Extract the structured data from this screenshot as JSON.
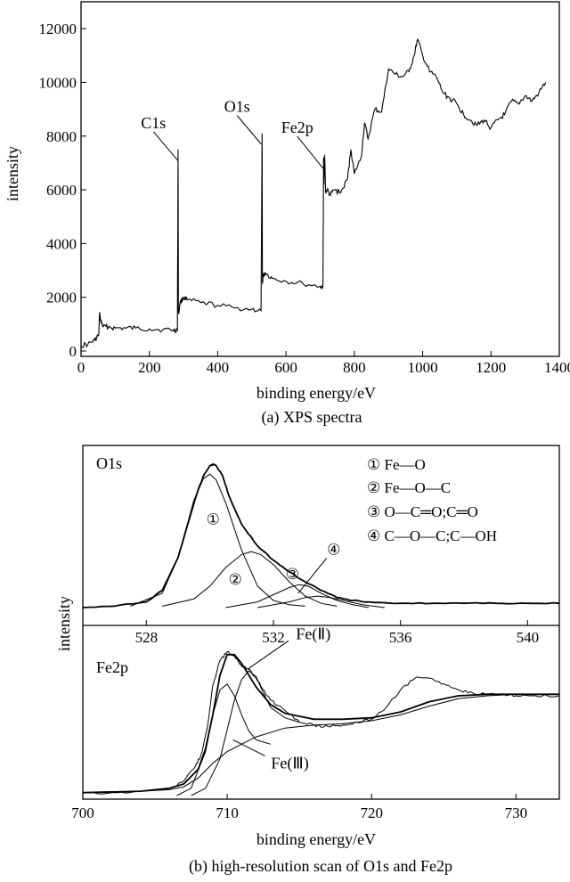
{
  "chart_data": [
    {
      "id": "survey",
      "type": "line",
      "caption": "(a)  XPS spectra",
      "xlabel": "binding energy/eV",
      "ylabel": "intensity",
      "xlim": [
        0,
        1400
      ],
      "ylim": [
        -200,
        13000
      ],
      "xticks": [
        0,
        200,
        400,
        600,
        800,
        1000,
        1200,
        1400
      ],
      "yticks": [
        0,
        2000,
        4000,
        6000,
        8000,
        10000,
        12000
      ],
      "series": [
        {
          "x": [
            0,
            20,
            40,
            52,
            54,
            58,
            65,
            80,
            100,
            130,
            160,
            200,
            240,
            270,
            282,
            284,
            285,
            286,
            290,
            300,
            310,
            350,
            400,
            450,
            500,
            527,
            530,
            531,
            533,
            540,
            560,
            600,
            650,
            700,
            708,
            710,
            711,
            713,
            716,
            720,
            730,
            740,
            760,
            780,
            790,
            800,
            820,
            830,
            840,
            860,
            880,
            900,
            920,
            940,
            960,
            975,
            985,
            1000,
            1020,
            1040,
            1060,
            1080,
            1100,
            1120,
            1140,
            1160,
            1180,
            1200,
            1220,
            1240,
            1260,
            1280,
            1300,
            1320,
            1340,
            1360
          ],
          "values": [
            200,
            250,
            400,
            600,
            1400,
            1100,
            900,
            900,
            850,
            850,
            850,
            820,
            800,
            780,
            780,
            7500,
            1600,
            1400,
            1800,
            2000,
            1900,
            1800,
            1700,
            1600,
            1550,
            1500,
            8100,
            2500,
            2800,
            2900,
            2700,
            2600,
            2500,
            2400,
            2400,
            7200,
            6200,
            7300,
            5900,
            6000,
            5800,
            6000,
            5900,
            6400,
            7500,
            6600,
            7200,
            8500,
            7900,
            9000,
            8900,
            10500,
            10300,
            10200,
            10400,
            11000,
            11600,
            11000,
            10400,
            10200,
            9600,
            9400,
            9200,
            8800,
            8600,
            8400,
            8600,
            8300,
            8600,
            8800,
            9300,
            9200,
            9500,
            9300,
            9600,
            10000
          ]
        }
      ],
      "annotations": [
        {
          "label": "C1s",
          "x": 285,
          "y": 7500
        },
        {
          "label": "O1s",
          "x": 530,
          "y": 8100
        },
        {
          "label": "Fe2p",
          "x": 711,
          "y": 7200
        }
      ]
    },
    {
      "id": "o1s",
      "type": "line",
      "panel_label": "O1s",
      "xlim": [
        526,
        541
      ],
      "ylim": [
        0,
        1.05
      ],
      "xticks": [
        528,
        532,
        536,
        540
      ],
      "series": [
        {
          "x": [
            526.0,
            527.0,
            528.0,
            528.5,
            529.0,
            529.3,
            529.6,
            529.8,
            530.0,
            530.1,
            530.2,
            530.4,
            530.6,
            531.0,
            531.5,
            532.0,
            532.5,
            533.0,
            533.5,
            534.0,
            534.5,
            535.0,
            536.0,
            537.0,
            538.0,
            539.0,
            540.0,
            541.0
          ],
          "values": [
            0.0,
            0.01,
            0.04,
            0.12,
            0.35,
            0.58,
            0.8,
            0.92,
            0.99,
            1.0,
            0.99,
            0.92,
            0.78,
            0.58,
            0.43,
            0.33,
            0.25,
            0.18,
            0.12,
            0.07,
            0.05,
            0.04,
            0.03,
            0.03,
            0.03,
            0.03,
            0.03,
            0.03
          ]
        },
        {
          "name": "① Fe—O",
          "x": [
            527.5,
            528.5,
            529.0,
            529.5,
            529.8,
            530.0,
            530.2,
            530.5,
            531.0,
            531.5,
            532.0,
            532.5,
            533.0
          ],
          "values": [
            0.01,
            0.1,
            0.35,
            0.75,
            0.9,
            0.93,
            0.89,
            0.73,
            0.4,
            0.15,
            0.05,
            0.02,
            0.01
          ]
        },
        {
          "name": "② Fe—O—C",
          "x": [
            528.5,
            529.5,
            530.0,
            530.5,
            531.0,
            531.3,
            531.6,
            532.0,
            532.5,
            533.0,
            533.5,
            534.0
          ],
          "values": [
            0.01,
            0.06,
            0.15,
            0.28,
            0.37,
            0.39,
            0.37,
            0.3,
            0.18,
            0.08,
            0.03,
            0.01
          ]
        },
        {
          "name": "③ O—C═O;C═O",
          "x": [
            530.5,
            531.5,
            532.0,
            532.5,
            532.8,
            533.1,
            533.5,
            534.0,
            534.5,
            535.0
          ],
          "values": [
            0.0,
            0.04,
            0.09,
            0.14,
            0.16,
            0.15,
            0.1,
            0.05,
            0.02,
            0.0
          ]
        },
        {
          "name": "④ C—O—C;C—OH",
          "x": [
            531.5,
            532.5,
            533.0,
            533.4,
            533.8,
            534.2,
            534.8,
            535.5
          ],
          "values": [
            0.0,
            0.04,
            0.07,
            0.08,
            0.07,
            0.05,
            0.02,
            0.0
          ]
        }
      ],
      "markers": [
        {
          "label": "①",
          "x": 530.1,
          "y": 0.58
        },
        {
          "label": "②",
          "x": 530.8,
          "y": 0.16
        },
        {
          "label": "③",
          "x": 532.6,
          "y": 0.2
        },
        {
          "label": "④",
          "x": 533.9,
          "y": 0.37
        }
      ]
    },
    {
      "id": "fe2p",
      "type": "line",
      "panel_label": "Fe2p",
      "caption": "(b) high-resolution scan of O1s and Fe2p",
      "xlabel": "binding energy/eV",
      "ylabel": "intensity",
      "xlim": [
        700,
        733
      ],
      "ylim": [
        0,
        1.05
      ],
      "xticks": [
        700,
        710,
        720,
        730
      ],
      "series": [
        {
          "x": [
            700,
            702,
            704,
            706,
            707,
            707.8,
            708.2,
            708.6,
            709.0,
            709.5,
            710.0,
            710.5,
            711.0,
            711.5,
            712.0,
            712.5,
            713.0,
            714.0,
            715.0,
            716.0,
            717.0,
            718.0,
            719.0,
            720.0,
            721.0,
            722.0,
            723.0,
            724.0,
            725.0,
            726.0,
            727.0,
            728.0,
            729.0,
            730.0,
            731.0,
            733.0
          ],
          "values": [
            0.02,
            0.02,
            0.03,
            0.05,
            0.1,
            0.2,
            0.28,
            0.45,
            0.75,
            0.92,
            0.98,
            0.95,
            0.88,
            0.86,
            0.8,
            0.72,
            0.65,
            0.58,
            0.5,
            0.48,
            0.47,
            0.48,
            0.5,
            0.52,
            0.6,
            0.72,
            0.8,
            0.8,
            0.76,
            0.72,
            0.7,
            0.69,
            0.69,
            0.68,
            0.68,
            0.68
          ]
        },
        {
          "x": [
            700,
            704,
            706,
            707,
            708,
            708.5,
            709,
            709.5,
            710,
            710.5,
            711,
            711.5,
            712,
            713,
            714,
            716,
            718,
            720,
            722,
            724,
            726,
            728,
            730,
            733
          ],
          "values": [
            0.02,
            0.03,
            0.05,
            0.08,
            0.18,
            0.32,
            0.55,
            0.82,
            0.96,
            0.96,
            0.9,
            0.82,
            0.74,
            0.62,
            0.56,
            0.52,
            0.52,
            0.53,
            0.57,
            0.64,
            0.68,
            0.69,
            0.69,
            0.69
          ]
        },
        {
          "x": [
            700,
            704,
            706,
            707,
            708,
            709,
            710,
            712,
            714,
            716,
            718,
            720,
            722,
            724,
            726,
            728,
            730,
            733
          ],
          "values": [
            0.02,
            0.03,
            0.04,
            0.06,
            0.12,
            0.22,
            0.3,
            0.4,
            0.46,
            0.48,
            0.49,
            0.51,
            0.55,
            0.61,
            0.66,
            0.68,
            0.69,
            0.69
          ]
        },
        {
          "name": "Fe(Ⅱ)",
          "x": [
            707.5,
            708.5,
            709.5,
            710.0,
            710.5,
            711.0,
            711.5,
            712.0,
            712.5,
            713.0,
            714.0,
            715.0
          ],
          "values": [
            0.0,
            0.05,
            0.25,
            0.45,
            0.65,
            0.79,
            0.85,
            0.81,
            0.7,
            0.6,
            0.53,
            0.5
          ]
        },
        {
          "name": "Fe(Ⅲ)",
          "x": [
            706.5,
            707.5,
            708.5,
            709.0,
            709.5,
            710.0,
            710.5,
            711.0,
            711.5,
            712.0,
            713.0
          ],
          "values": [
            0.0,
            0.05,
            0.3,
            0.55,
            0.72,
            0.76,
            0.68,
            0.55,
            0.44,
            0.38,
            0.35
          ]
        }
      ],
      "annotations": [
        {
          "label": "Fe(Ⅱ)",
          "x": 711.4,
          "y": 0.86
        },
        {
          "label": "Fe(Ⅲ)",
          "x": 710.4,
          "y": 0.38
        }
      ]
    }
  ]
}
